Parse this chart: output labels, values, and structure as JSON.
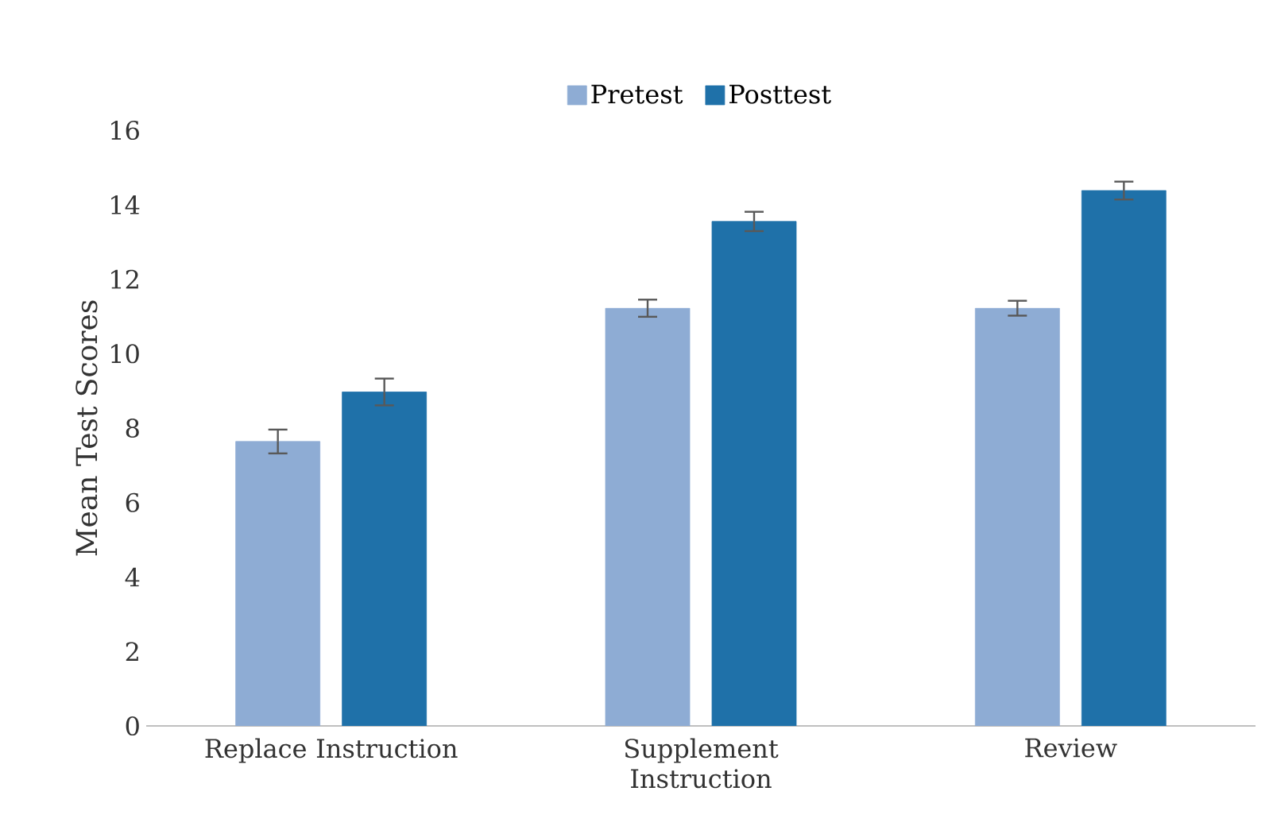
{
  "chart_data": {
    "type": "bar",
    "ylabel": "Mean Test Scores",
    "categories": [
      "Replace Instruction",
      "Supplement Instruction",
      "Review"
    ],
    "series": [
      {
        "name": "Pretest",
        "color": "#8eacd4",
        "values": [
          7.64,
          11.22,
          11.22
        ],
        "errors": [
          0.32,
          0.23,
          0.2
        ]
      },
      {
        "name": "Posttest",
        "color": "#1f71a9",
        "values": [
          8.97,
          13.55,
          14.38
        ],
        "errors": [
          0.36,
          0.26,
          0.24
        ]
      }
    ],
    "ylim": [
      0,
      16
    ],
    "yticks": [
      0,
      2,
      4,
      6,
      8,
      10,
      12,
      14,
      16
    ],
    "legend": "top"
  }
}
